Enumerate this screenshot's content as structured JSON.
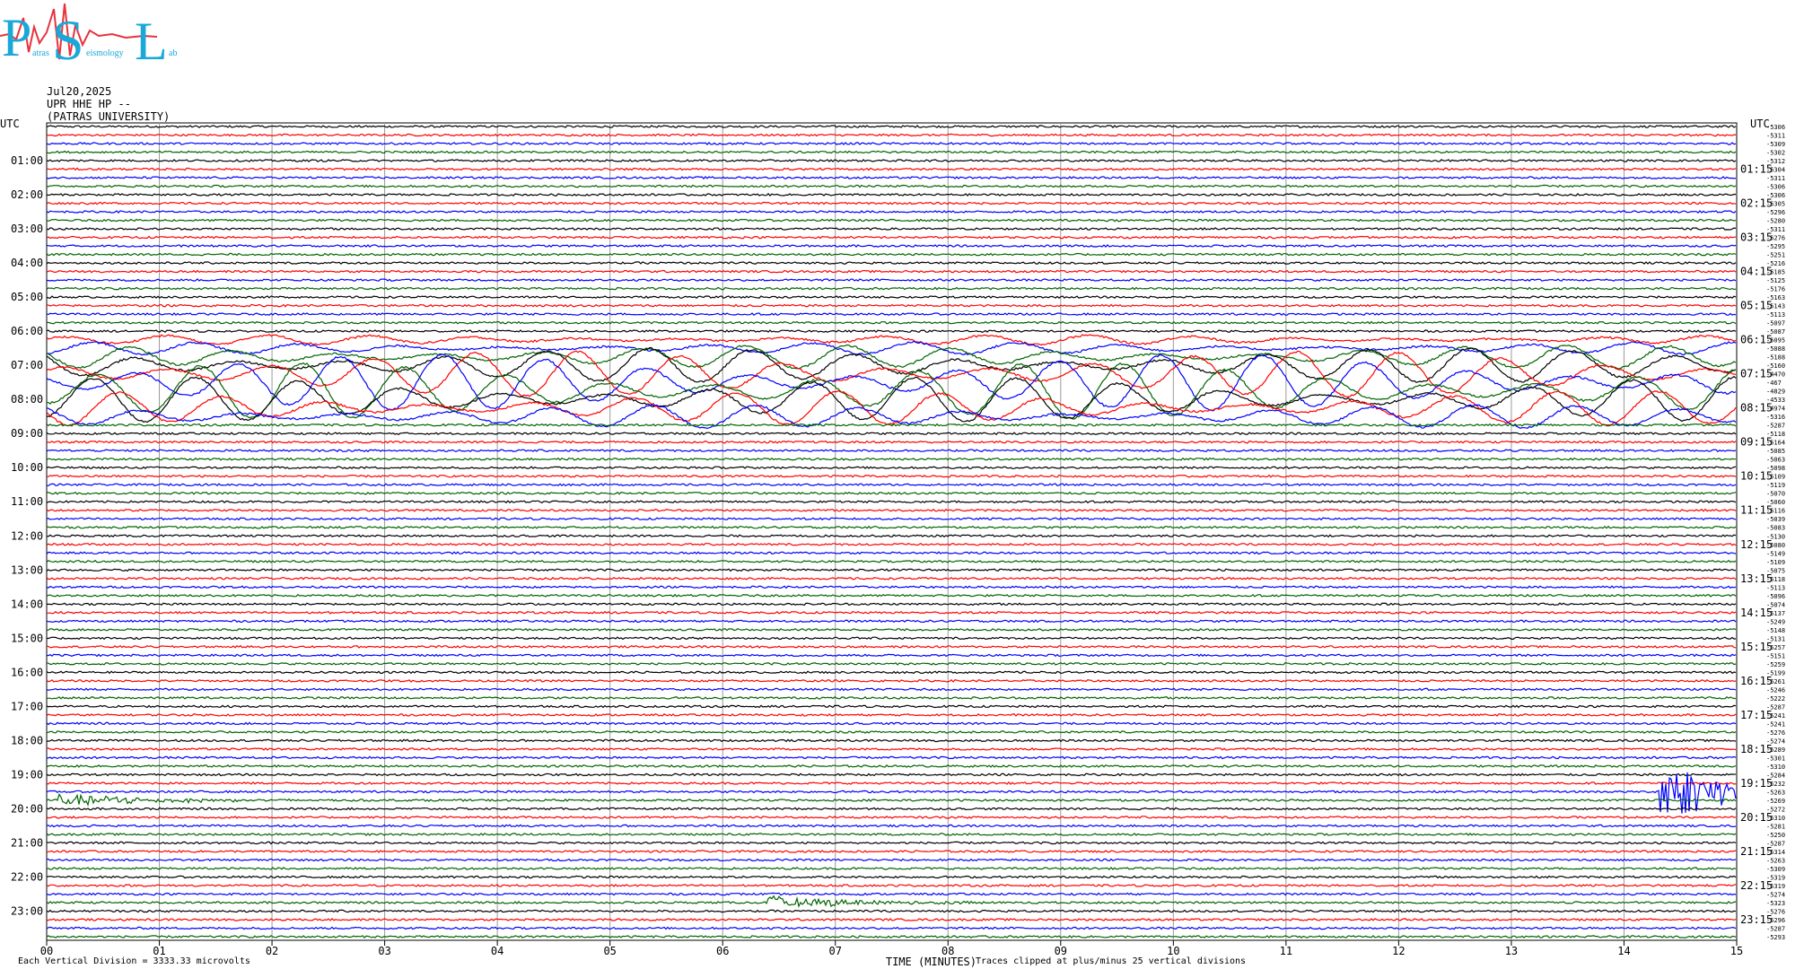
{
  "logo": {
    "letters": [
      "P",
      "S",
      "L"
    ],
    "small_words": [
      "atras",
      "eismology",
      "ab"
    ],
    "colors": {
      "letters": "#1aa8d8",
      "spikes": "#e8323c"
    }
  },
  "header": {
    "date": "Jul20,2025",
    "station": "UPR HHE HP --",
    "institution": "(PATRAS UNIVERSITY)"
  },
  "axis": {
    "left_title": "UTC",
    "right_title": "UTC",
    "left_hour_labels": [
      "01:00",
      "02:00",
      "03:00",
      "04:00",
      "05:00",
      "06:00",
      "07:00",
      "08:00",
      "09:00",
      "10:00",
      "11:00",
      "12:00",
      "13:00",
      "14:00",
      "15:00",
      "16:00",
      "17:00",
      "18:00",
      "19:00",
      "20:00",
      "21:00",
      "22:00",
      "23:00"
    ],
    "right_hour_labels": [
      "01:15",
      "02:15",
      "03:15",
      "04:15",
      "05:15",
      "06:15",
      "07:15",
      "08:15",
      "09:15",
      "10:15",
      "11:15",
      "12:15",
      "13:15",
      "14:15",
      "15:15",
      "16:15",
      "17:15",
      "18:15",
      "19:15",
      "20:15",
      "21:15",
      "22:15",
      "23:15"
    ],
    "minute_ticks": [
      "00",
      "01",
      "02",
      "03",
      "04",
      "05",
      "06",
      "07",
      "08",
      "09",
      "10",
      "11",
      "12",
      "13",
      "14",
      "15"
    ],
    "xlabel": "TIME (MINUTES)"
  },
  "footer": {
    "division": "Each Vertical Division = 3333.33 microvolts",
    "clip_note": "Traces clipped at plus/minus 25 vertical divisions"
  },
  "chart_data": {
    "type": "line",
    "title": "",
    "xlabel": "TIME (MINUTES)",
    "ylabel": "UTC",
    "xlim": [
      0,
      15
    ],
    "trace_count": 96,
    "trace_colors": [
      "#000000",
      "#ff0000",
      "#0000ff",
      "#006400"
    ],
    "trace_minutes": 15,
    "offsets": [
      "-5306",
      "-5311",
      "-5309",
      "-5302",
      "-5312",
      "-5304",
      "-5311",
      "-5306",
      "-5306",
      "-5305",
      "-5296",
      "-5280",
      "-5311",
      "-5276",
      "-5295",
      "-5251",
      "-5216",
      "-5185",
      "-5125",
      "-5176",
      "-5163",
      "-5143",
      "-5113",
      "-5097",
      "-5087",
      "-5095",
      "-5088",
      "-5188",
      "-5160",
      "-4470",
      "-467",
      "-4829",
      "-4533",
      "-4974",
      "-5316",
      "-5287",
      "-5118",
      "-5164",
      "-5085",
      "-5063",
      "-5098",
      "-5109",
      "-5119",
      "-5070",
      "-5060",
      "-5116",
      "-5039",
      "-5083",
      "-5130",
      "-5080",
      "-5149",
      "-5109",
      "-5075",
      "-5118",
      "-5113",
      "-5096",
      "-5074",
      "-5137",
      "-5249",
      "-5148",
      "-5131",
      "-5257",
      "-5151",
      "-5259",
      "-5199",
      "-5261",
      "-5246",
      "-5222",
      "-5287",
      "-5241",
      "-5241",
      "-5276",
      "-5274",
      "-5289",
      "-5301",
      "-5310",
      "-5284",
      "-5232",
      "-5263",
      "-5269",
      "-5272",
      "-5310",
      "-5281",
      "-5250",
      "-5287",
      "-5314",
      "-5263",
      "-5309",
      "-5319",
      "-5319",
      "-5274",
      "-5323",
      "-5276",
      "-5296",
      "-5287",
      "-5293"
    ],
    "events": [
      {
        "name": "teleseism",
        "start_hour": 6.75,
        "end_hour": 8.5,
        "amplitude": "large"
      },
      {
        "name": "local",
        "start_hour": 19.75,
        "minute": 0.1,
        "amplitude": "small"
      },
      {
        "name": "local",
        "start_hour": 19.5,
        "minute": 14.3,
        "amplitude": "medium"
      },
      {
        "name": "local",
        "start_hour": 22.75,
        "minute": 6.4,
        "amplitude": "small"
      }
    ]
  }
}
